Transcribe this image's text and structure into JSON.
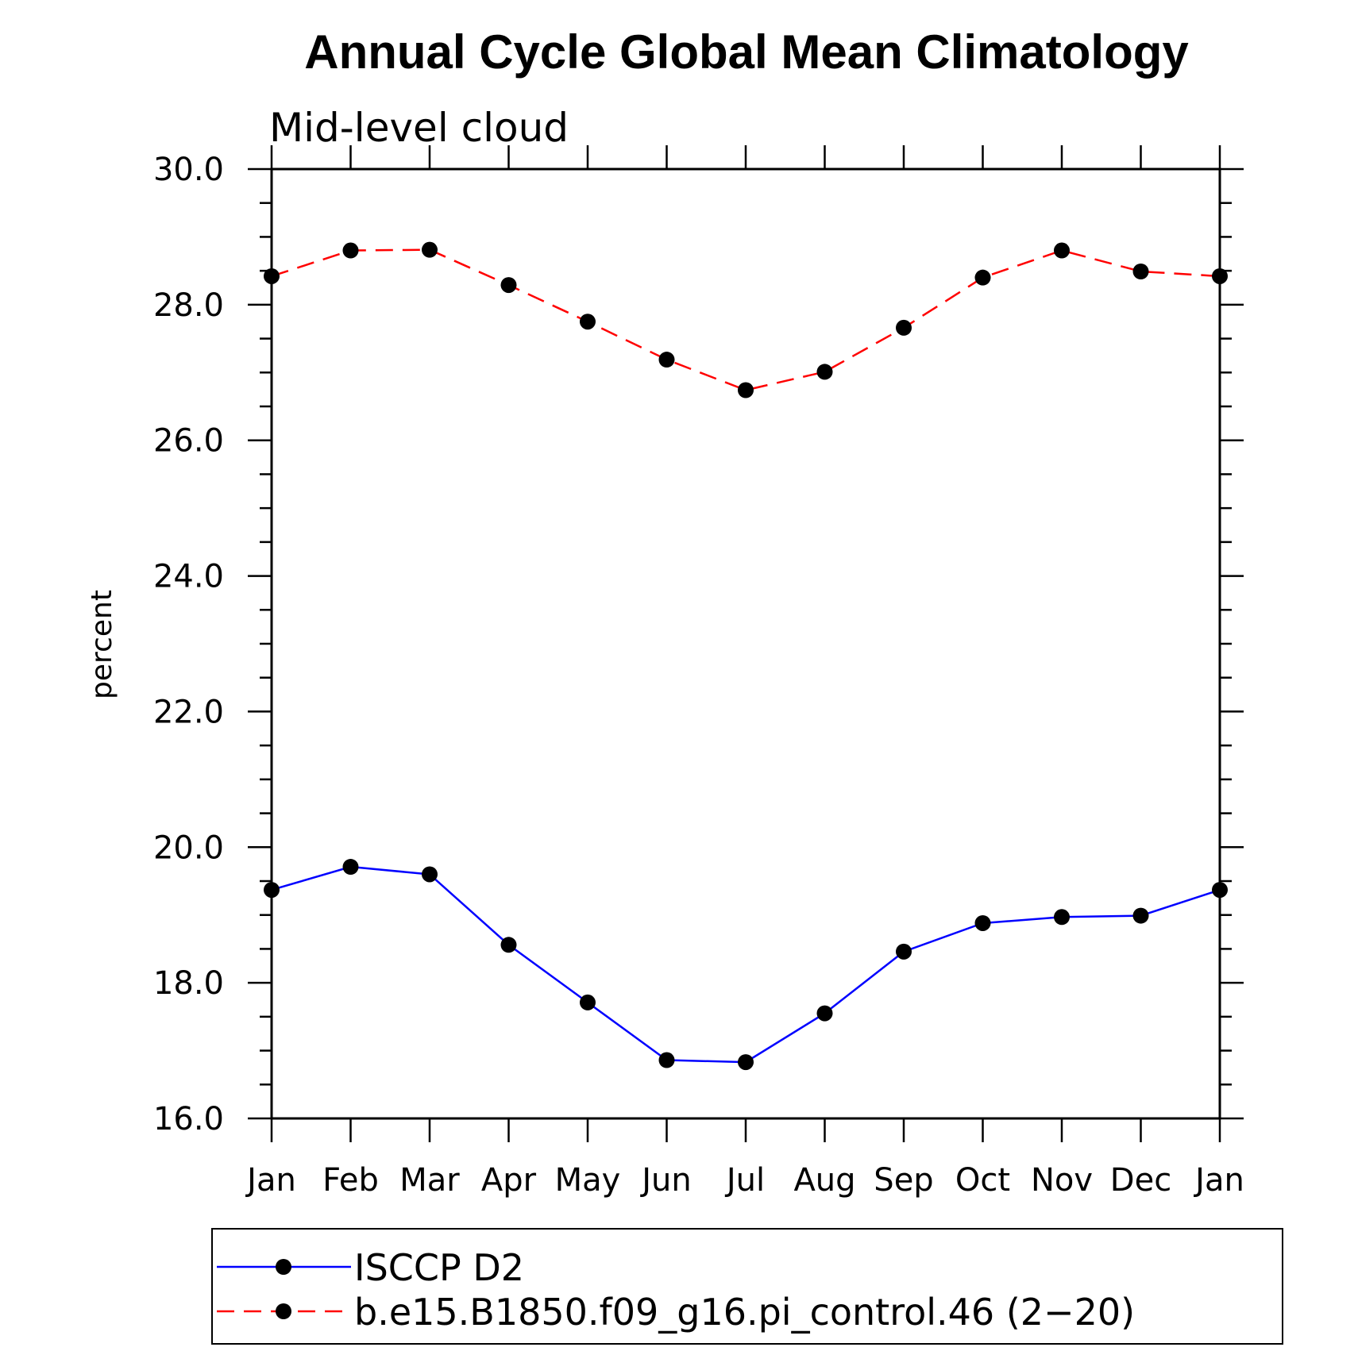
{
  "chart_data": {
    "type": "line",
    "title": "Annual Cycle Global Mean Climatology",
    "subtitle": "Mid-level cloud",
    "xlabel": "",
    "ylabel": "percent",
    "ylim": [
      16.0,
      30.0
    ],
    "yticks": [
      "16.0",
      "18.0",
      "20.0",
      "22.0",
      "24.0",
      "26.0",
      "28.0",
      "30.0"
    ],
    "categories": [
      "Jan",
      "Feb",
      "Mar",
      "Apr",
      "May",
      "Jun",
      "Jul",
      "Aug",
      "Sep",
      "Oct",
      "Nov",
      "Dec",
      "Jan"
    ],
    "grid": false,
    "legend_position": "bottom",
    "series": [
      {
        "name": "ISCCP D2",
        "color": "#0000ff",
        "dash": "solid",
        "marker": "filled-circle",
        "values": [
          19.37,
          19.71,
          19.6,
          18.56,
          17.71,
          16.86,
          16.83,
          17.55,
          18.46,
          18.88,
          18.97,
          18.99,
          19.37
        ]
      },
      {
        "name": "b.e15.B1850.f09_g16.pi_control.46 (2−20)",
        "color": "#ff0000",
        "dash": "dashed",
        "marker": "filled-circle",
        "values": [
          28.42,
          28.8,
          28.81,
          28.29,
          27.75,
          27.19,
          26.74,
          27.01,
          27.66,
          28.4,
          28.8,
          28.49,
          28.42
        ]
      }
    ]
  }
}
